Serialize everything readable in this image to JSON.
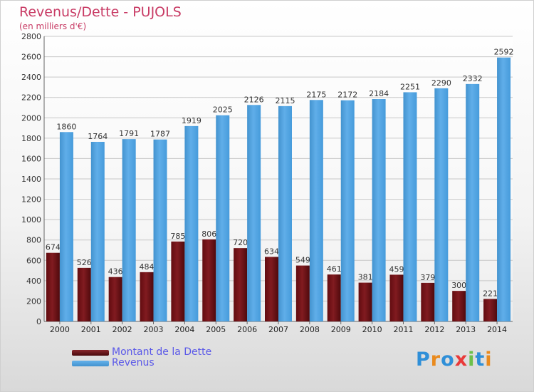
{
  "title": "Revenus/Dette - PUJOLS",
  "subtitle": "(en milliers d'€)",
  "logo": {
    "text": "Proxiti",
    "letters": [
      "P",
      "r",
      "o",
      "x",
      "i",
      "t",
      "i"
    ],
    "colors": [
      "#2f8fd8",
      "#e98a1e",
      "#2f8fd8",
      "#e93a3a",
      "#6cc04a",
      "#2f8fd8",
      "#e98a1e"
    ]
  },
  "colors": {
    "title": "#c83a64",
    "dette": "#7a0f14",
    "revenus": "#4aa3e6",
    "legend_text": "#5a58e8"
  },
  "chart_data": {
    "type": "bar",
    "title": "Revenus/Dette - PUJOLS",
    "subtitle": "(en milliers d'€)",
    "categories": [
      "2000",
      "2001",
      "2002",
      "2003",
      "2004",
      "2005",
      "2006",
      "2007",
      "2008",
      "2009",
      "2010",
      "2011",
      "2012",
      "2013",
      "2014"
    ],
    "ylim": [
      0,
      2800
    ],
    "yticks": [
      0,
      200,
      400,
      600,
      800,
      1000,
      1200,
      1400,
      1600,
      1800,
      2000,
      2200,
      2400,
      2600,
      2800
    ],
    "grid": true,
    "legend_position": "bottom-left",
    "series": [
      {
        "name": "Montant de la Dette",
        "color": "#7a0f14",
        "values": [
          674,
          526,
          436,
          484,
          785,
          806,
          720,
          634,
          549,
          461,
          381,
          459,
          379,
          300,
          221
        ]
      },
      {
        "name": "Revenus",
        "color": "#4aa3e6",
        "values": [
          1860,
          1764,
          1791,
          1787,
          1919,
          2025,
          2126,
          2115,
          2175,
          2172,
          2184,
          2251,
          2290,
          2332,
          2592
        ]
      }
    ]
  }
}
